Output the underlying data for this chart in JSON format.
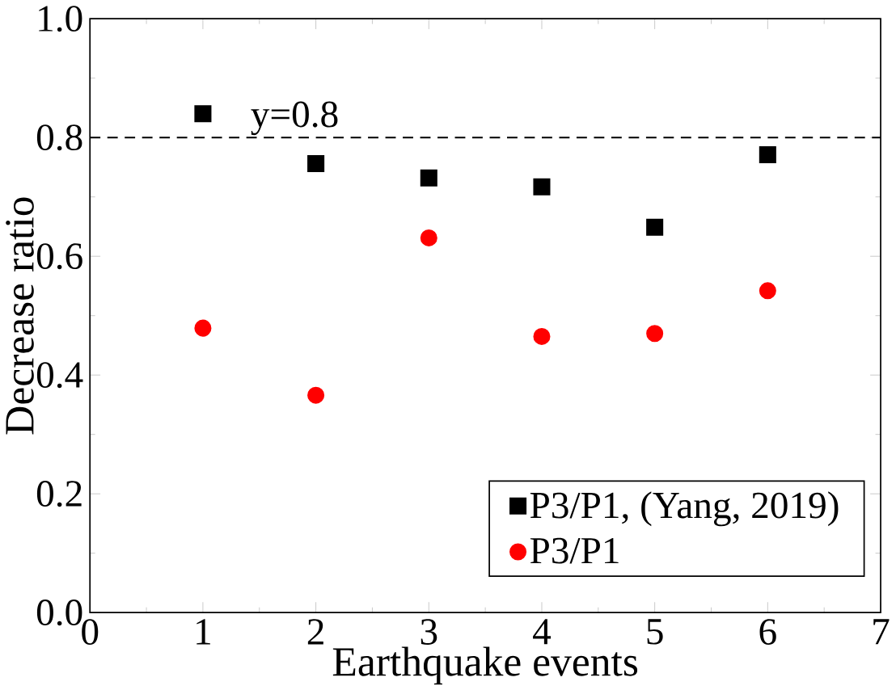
{
  "chart_data": {
    "type": "scatter",
    "xlabel": "Earthquake events",
    "ylabel": "Decrease ratio",
    "x": [
      1,
      2,
      3,
      4,
      5,
      6
    ],
    "series": [
      {
        "name": "P3/P1, (Yang, 2019)",
        "color": "#000000",
        "marker": "square",
        "values": [
          0.84,
          0.756,
          0.732,
          0.717,
          0.649,
          0.771
        ]
      },
      {
        "name": "P3/P1",
        "color": "#ff0000",
        "marker": "circle",
        "values": [
          0.479,
          0.366,
          0.631,
          0.465,
          0.47,
          0.542
        ]
      }
    ],
    "xlim": [
      0,
      7
    ],
    "xticks": [
      0,
      1,
      2,
      3,
      4,
      5,
      6,
      7
    ],
    "ylim": [
      0,
      1
    ],
    "yticks": [
      {
        "value": 0,
        "label": "0.0"
      },
      {
        "value": 0.2,
        "label": "0.2"
      },
      {
        "value": 0.4,
        "label": "0.4"
      },
      {
        "value": 0.6,
        "label": "0.6"
      },
      {
        "value": 0.8,
        "label": "0.8"
      },
      {
        "value": 1,
        "label": "1.0"
      }
    ],
    "ref_lines": [
      {
        "axis": "y",
        "value": 0.8,
        "label": "y=0.8",
        "color": "#000000",
        "line_style": "dashed"
      }
    ],
    "legend": "bottom right",
    "grid": false
  }
}
